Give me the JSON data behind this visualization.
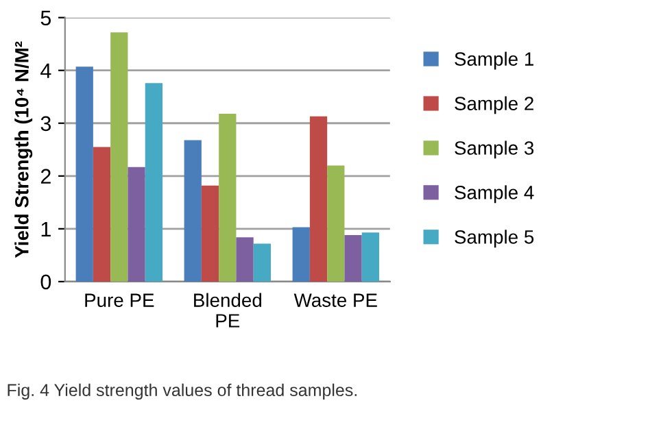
{
  "chart_data": {
    "type": "bar",
    "ylabel": "Yield Strength (10⁴ N/M²",
    "categories": [
      "Pure PE",
      "Blended\nPE",
      "Waste PE"
    ],
    "series": [
      {
        "name": "Sample 1",
        "color": "#4a7ebb",
        "values": [
          4.07,
          2.68,
          1.03
        ]
      },
      {
        "name": "Sample 2",
        "color": "#be4b48",
        "values": [
          2.55,
          1.82,
          3.13
        ]
      },
      {
        "name": "Sample 3",
        "color": "#98b954",
        "values": [
          4.72,
          3.18,
          2.2
        ]
      },
      {
        "name": "Sample 4",
        "color": "#7d60a0",
        "values": [
          2.17,
          0.84,
          0.88
        ]
      },
      {
        "name": "Sample 5",
        "color": "#46aac5",
        "values": [
          3.76,
          0.72,
          0.93
        ]
      }
    ],
    "ylim": [
      0,
      5
    ],
    "yticks": [
      0,
      1,
      2,
      3,
      4,
      5
    ],
    "grid": "y",
    "legend": "right",
    "annotations": [
      "Fig. 4 Yield strength values of thread samples."
    ]
  }
}
